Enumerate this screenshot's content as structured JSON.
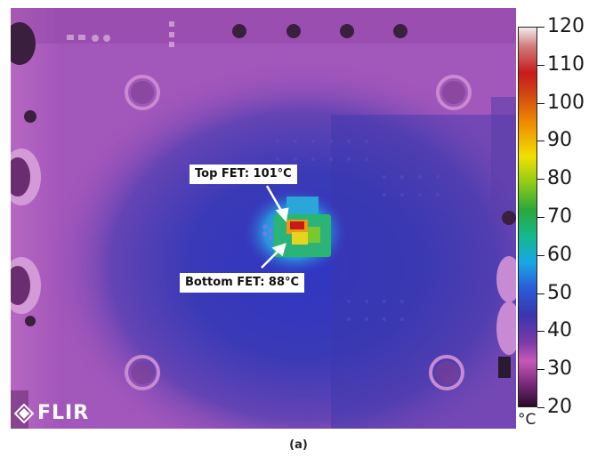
{
  "annotations": {
    "top_fet": "Top FET: 101°C",
    "bottom_fet": "Bottom FET: 88°C"
  },
  "colorbar": {
    "ticks": [
      "120",
      "110",
      "100",
      "90",
      "80",
      "70",
      "60",
      "50",
      "40",
      "30",
      "20"
    ],
    "unit": "°C",
    "range": [
      20,
      120
    ]
  },
  "brand": {
    "logo_text": "FLIR"
  },
  "caption": "(a)",
  "colors": {
    "background": "#a154b9",
    "cool_region": "#3d3cb2",
    "hot_spot": "#c81818",
    "warm": "#f0d020",
    "mid": "#2ab56a"
  }
}
